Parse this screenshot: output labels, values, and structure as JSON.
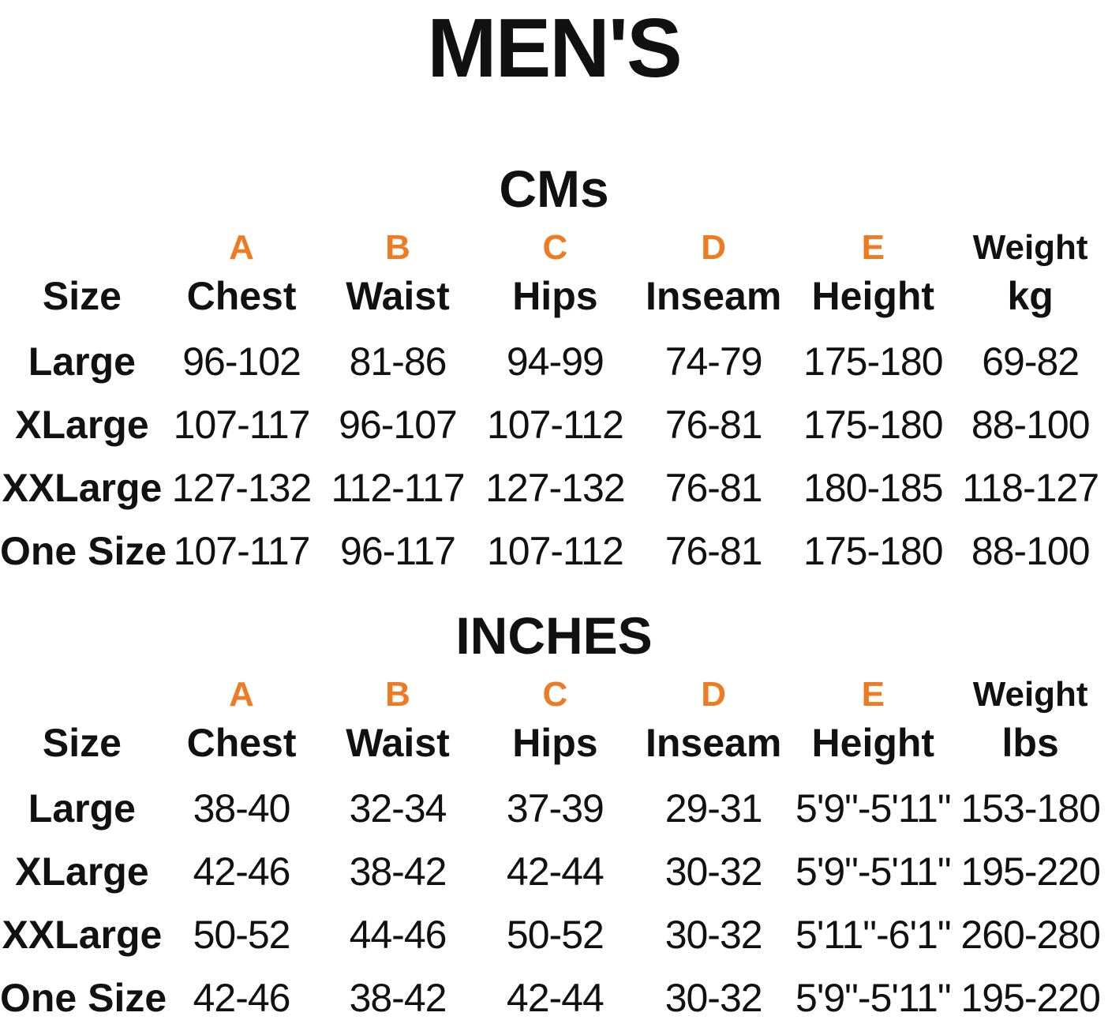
{
  "page_title": "MEN'S",
  "accent_color": "#EE7B22",
  "tables": [
    {
      "title": "CMs",
      "letter_row": [
        "",
        "A",
        "B",
        "C",
        "D",
        "E",
        "Weight"
      ],
      "header_row": [
        "Size",
        "Chest",
        "Waist",
        "Hips",
        "Inseam",
        "Height",
        "kg"
      ],
      "rows": [
        [
          "Large",
          "96-102",
          "81-86",
          "94-99",
          "74-79",
          "175-180",
          "69-82"
        ],
        [
          "XLarge",
          "107-117",
          "96-107",
          "107-112",
          "76-81",
          "175-180",
          "88-100"
        ],
        [
          "XXLarge",
          "127-132",
          "112-117",
          "127-132",
          "76-81",
          "180-185",
          "118-127"
        ],
        [
          "One Size",
          "107-117",
          "96-117",
          "107-112",
          "76-81",
          "175-180",
          "88-100"
        ]
      ]
    },
    {
      "title": "INCHES",
      "letter_row": [
        "",
        "A",
        "B",
        "C",
        "D",
        "E",
        "Weight"
      ],
      "header_row": [
        "Size",
        "Chest",
        "Waist",
        "Hips",
        "Inseam",
        "Height",
        "lbs"
      ],
      "rows": [
        [
          "Large",
          "38-40",
          "32-34",
          "37-39",
          "29-31",
          "5'9\"-5'11\"",
          "153-180"
        ],
        [
          "XLarge",
          "42-46",
          "38-42",
          "42-44",
          "30-32",
          "5'9\"-5'11\"",
          "195-220"
        ],
        [
          "XXLarge",
          "50-52",
          "44-46",
          "50-52",
          "30-32",
          "5'11\"-6'1\"",
          "260-280"
        ],
        [
          "One Size",
          "42-46",
          "38-42",
          "42-44",
          "30-32",
          "5'9\"-5'11\"",
          "195-220"
        ]
      ]
    }
  ]
}
